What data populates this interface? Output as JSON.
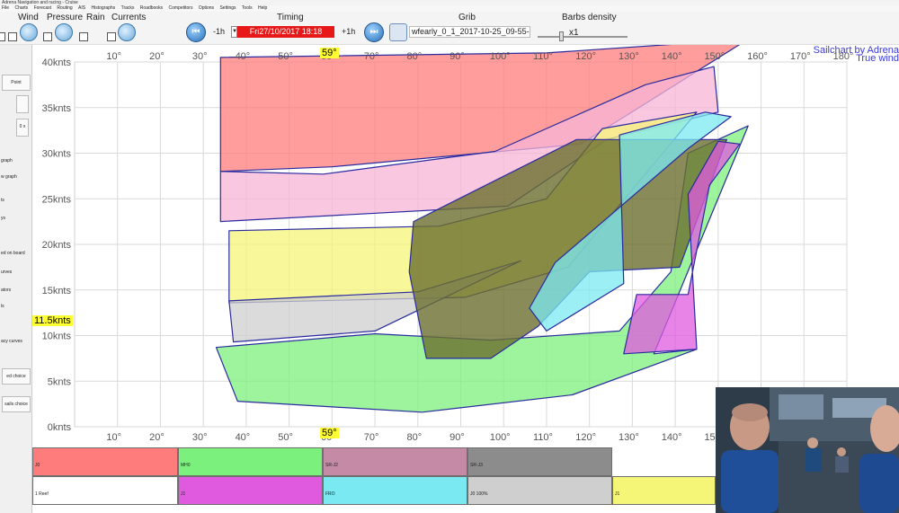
{
  "app": {
    "title": "Adrena Navigation and racing - Cruise",
    "menu": [
      "File",
      "Charts",
      "Forecast",
      "Routing",
      "AIS",
      "Histographs",
      "Tracks",
      "Roadbooks",
      "Competitors",
      "Options",
      "Settings",
      "Tools",
      "Help"
    ]
  },
  "toolbar": {
    "wind_label": "Wind",
    "pressure_label": "Pressure",
    "rain_label": "Rain",
    "currents_label": "Currents",
    "timing_label": "Timing",
    "minus_label": "-1h",
    "plus_label": "+1h",
    "timing_value": "Fri27/10/2017 18:18",
    "grib_label": "Grib",
    "grib_value": "wfearly_0_1_2017-10-25_09-55-5",
    "barbs_label": "Barbs density",
    "barbs_value": "x1"
  },
  "leftpanel": {
    "point_button": "Point",
    "numeric_value": "0 x",
    "items": [
      "graph",
      "w graph",
      "ts",
      "ys",
      "ed on board",
      "urves",
      "ators",
      "ls",
      "acy curves"
    ],
    "button_choice_1": "ed choice",
    "button_choice_2": "sails choice"
  },
  "chart": {
    "title": "Sailchart by Adrena",
    "subtitle": "True wind",
    "highlight_angle": "59°",
    "highlight_speed": "11.5knts",
    "colors": {
      "J0": "#ff7c7c",
      "MH0": "#7cf07c",
      "SR-J2": "#c48aa6",
      "SR-J3": "#8c8c8c",
      "pink": "#f7b6d6",
      "magenta": "#e05ae0",
      "FRO": "#7be9f2",
      "J0_100": "#cfcfcf",
      "J1": "#f5f578",
      "dark_olive": "#6b6f2e",
      "cyan": "#4fc9d6"
    }
  },
  "chart_data": {
    "type": "area",
    "title": "Sailchart by Adrena",
    "subtitle": "True wind",
    "xlabel": "",
    "ylabel": "",
    "x_ticks": [
      "10°",
      "20°",
      "30°",
      "40°",
      "50°",
      "60°",
      "70°",
      "80°",
      "90°",
      "100°",
      "110°",
      "120°",
      "130°",
      "140°",
      "150°",
      "160°",
      "170°",
      "180°"
    ],
    "y_ticks": [
      "0knts",
      "5knts",
      "10knts",
      "15knts",
      "20knts",
      "25knts",
      "30knts",
      "35knts",
      "40knts"
    ],
    "xlim": [
      0,
      180
    ],
    "ylim": [
      0,
      40
    ],
    "grid": true,
    "series": [
      {
        "name": "J0",
        "color": "#ff7c7c",
        "points": [
          [
            34,
            40.5
          ],
          [
            110,
            41
          ],
          [
            157,
            42.5
          ],
          [
            118,
            31
          ],
          [
            60,
            28.5
          ],
          [
            34,
            28
          ]
        ]
      },
      {
        "name": "",
        "color": "#f7b6d6",
        "points": [
          [
            34,
            28
          ],
          [
            58,
            27.7
          ],
          [
            98,
            30.2
          ],
          [
            133,
            37.5
          ],
          [
            149,
            39.5
          ],
          [
            150,
            34.5
          ],
          [
            124,
            31.5
          ],
          [
            101,
            24.2
          ],
          [
            34,
            22.5
          ]
        ]
      },
      {
        "name": "J1",
        "color": "#f5f578",
        "points": [
          [
            36,
            21.5
          ],
          [
            85,
            22
          ],
          [
            110,
            25
          ],
          [
            123,
            32.7
          ],
          [
            145,
            34.5
          ],
          [
            115,
            17.5
          ],
          [
            91,
            14.2
          ],
          [
            36,
            13.6
          ]
        ]
      },
      {
        "name": "J0 100%",
        "color": "#cfcfcf",
        "points": [
          [
            36,
            13.8
          ],
          [
            80,
            14.8
          ],
          [
            104,
            18.2
          ],
          [
            70,
            10.5
          ],
          [
            37,
            9.3
          ]
        ]
      },
      {
        "name": "MH0",
        "color": "#7cf07c",
        "points": [
          [
            33,
            8.7
          ],
          [
            70,
            10.2
          ],
          [
            97,
            9.5
          ],
          [
            127,
            10.5
          ],
          [
            139,
            17
          ],
          [
            143,
            30
          ],
          [
            157,
            33
          ],
          [
            135,
            8
          ],
          [
            145,
            8.5
          ],
          [
            116,
            3.5
          ],
          [
            81,
            1.6
          ],
          [
            38,
            2.8
          ]
        ]
      },
      {
        "name": "",
        "color": "#6b6f2e",
        "points": [
          [
            79,
            22.5
          ],
          [
            117,
            31.5
          ],
          [
            152,
            31.5
          ],
          [
            141,
            17.5
          ],
          [
            120,
            17
          ],
          [
            108,
            11
          ],
          [
            97,
            7.5
          ],
          [
            82,
            7.5
          ],
          [
            78,
            17
          ]
        ]
      },
      {
        "name": "FRO",
        "color": "#7be9f2",
        "points": [
          [
            127,
            32
          ],
          [
            147,
            34.5
          ],
          [
            153,
            34
          ],
          [
            143,
            30.5
          ],
          [
            112,
            18
          ],
          [
            106,
            13
          ],
          [
            110,
            10.5
          ],
          [
            128,
            15.7
          ]
        ]
      },
      {
        "name": "",
        "color": "#e05ae0",
        "points": [
          [
            143,
            25.5
          ],
          [
            150,
            31.3
          ],
          [
            155,
            31
          ],
          [
            148,
            26.5
          ],
          [
            143,
            14.5
          ],
          [
            131,
            14.5
          ],
          [
            128,
            8
          ],
          [
            145,
            8.5
          ]
        ]
      }
    ]
  },
  "legend": {
    "row1": [
      {
        "label": "J0",
        "color": "#ff7c7c"
      },
      {
        "label": "MH0",
        "color": "#7cf07c"
      },
      {
        "label": "SR-J2",
        "color": "#c48aa6"
      },
      {
        "label": "SR-J3",
        "color": "#8c8c8c"
      }
    ],
    "row2": [
      {
        "label": "1 Reef",
        "color": "#ffffff"
      },
      {
        "label": "J1",
        "color": "#e05ae0"
      },
      {
        "label": "FRO",
        "color": "#7be9f2"
      },
      {
        "label": "J0 100%",
        "color": "#cfcfcf"
      },
      {
        "label": "J1",
        "color": "#f5f578"
      }
    ]
  }
}
